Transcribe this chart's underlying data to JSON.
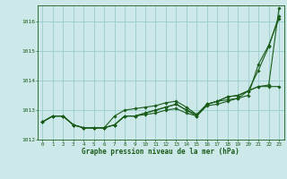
{
  "background_color": "#cce8e8",
  "grid_color": "#99cccc",
  "line_color": "#1a5c1a",
  "title": "Graphe pression niveau de la mer (hPa)",
  "xlim": [
    -0.5,
    23.5
  ],
  "ylim": [
    1012.0,
    1016.55
  ],
  "yticks": [
    1012,
    1013,
    1014,
    1015,
    1016
  ],
  "xticks": [
    0,
    1,
    2,
    3,
    4,
    5,
    6,
    7,
    8,
    9,
    10,
    11,
    12,
    13,
    14,
    15,
    16,
    17,
    18,
    19,
    20,
    21,
    22,
    23
  ],
  "series": [
    [
      1012.6,
      1012.8,
      1012.8,
      1012.5,
      1012.4,
      1012.4,
      1012.4,
      1012.5,
      1012.8,
      1012.8,
      1012.9,
      1013.0,
      1013.1,
      1013.2,
      1013.0,
      1012.85,
      1013.2,
      1013.3,
      1013.45,
      1013.5,
      1013.65,
      1013.8,
      1013.85,
      1016.45
    ],
    [
      1012.6,
      1012.8,
      1012.8,
      1012.5,
      1012.4,
      1012.4,
      1012.4,
      1012.8,
      1013.0,
      1013.05,
      1013.1,
      1013.15,
      1013.25,
      1013.3,
      1013.1,
      1012.85,
      1013.2,
      1013.3,
      1013.35,
      1013.4,
      1013.5,
      1014.55,
      1015.2,
      1016.1
    ],
    [
      1012.6,
      1012.8,
      1012.8,
      1012.5,
      1012.4,
      1012.4,
      1012.4,
      1012.5,
      1012.8,
      1012.8,
      1012.85,
      1012.9,
      1013.0,
      1013.05,
      1012.9,
      1012.8,
      1013.15,
      1013.2,
      1013.3,
      1013.4,
      1013.65,
      1014.35,
      1015.15,
      1016.2
    ],
    [
      1012.6,
      1012.8,
      1012.8,
      1012.5,
      1012.4,
      1012.4,
      1012.4,
      1012.5,
      1012.8,
      1012.8,
      1012.9,
      1013.0,
      1013.1,
      1013.2,
      1013.0,
      1012.8,
      1013.2,
      1013.3,
      1013.45,
      1013.5,
      1013.65,
      1013.8,
      1013.8,
      1013.8
    ]
  ]
}
